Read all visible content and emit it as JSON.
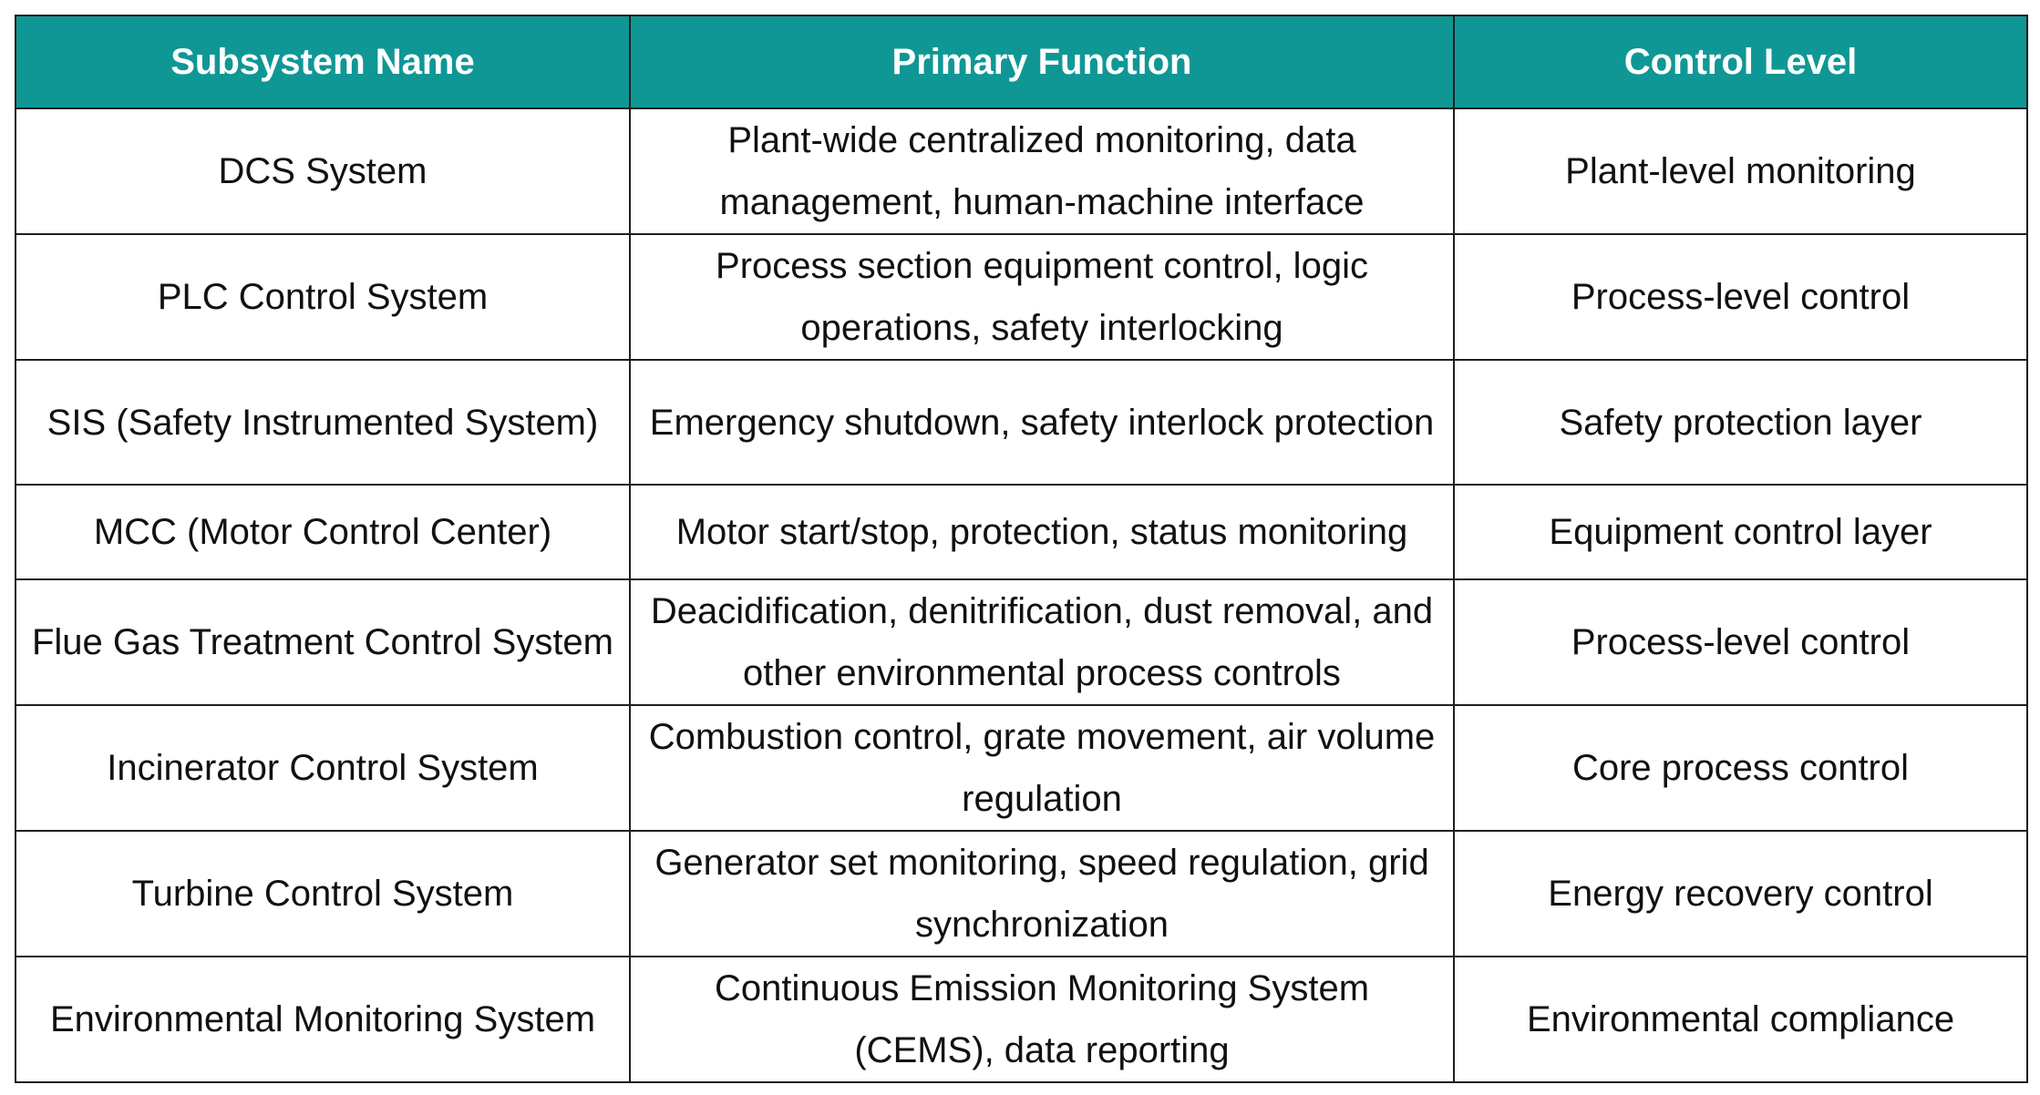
{
  "table": {
    "headers": [
      "Subsystem Name",
      "Primary Function",
      "Control Level"
    ],
    "rows": [
      [
        "DCS System",
        "Plant-wide centralized monitoring, data management, human-machine interface",
        "Plant-level monitoring"
      ],
      [
        "PLC Control System",
        "Process section equipment control, logic operations, safety interlocking",
        "Process-level control"
      ],
      [
        "SIS (Safety Instrumented System)",
        "Emergency shutdown, safety interlock protection",
        "Safety protection layer"
      ],
      [
        "MCC (Motor Control Center)",
        "Motor start/stop, protection, status monitoring",
        "Equipment control layer"
      ],
      [
        "Flue Gas Treatment Control System",
        "Deacidification, denitrification, dust removal, and other environmental process controls",
        "Process-level control"
      ],
      [
        "Incinerator Control System",
        "Combustion control, grate movement, air volume regulation",
        "Core process control"
      ],
      [
        "Turbine Control System",
        "Generator set monitoring, speed regulation, grid synchronization",
        "Energy recovery control"
      ],
      [
        "Environmental Monitoring System",
        "Continuous Emission Monitoring System (CEMS), data reporting",
        "Environmental compliance"
      ]
    ]
  },
  "colors": {
    "header_bg": "#0f9796",
    "header_text": "#ffffff",
    "border": "#1f1f1f"
  }
}
